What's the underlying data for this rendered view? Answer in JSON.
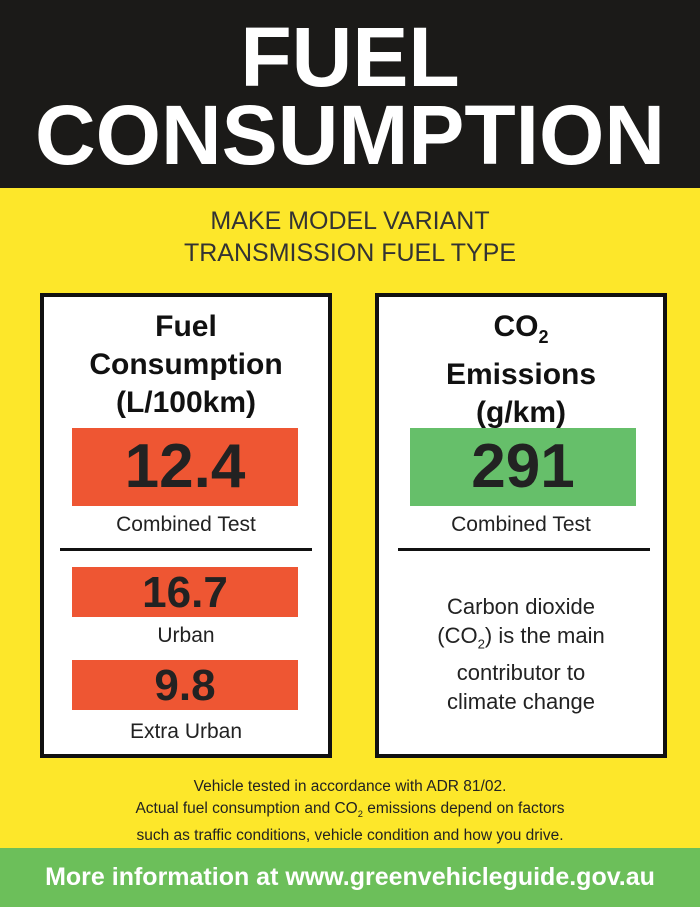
{
  "header": {
    "title": [
      "FUEL",
      "CONSUMPTION"
    ]
  },
  "subtitle": [
    "MAKE MODEL VARIANT",
    "TRANSMISSION FUEL TYPE"
  ],
  "fuel_panel": {
    "title": [
      "Fuel",
      "Consumption",
      "(L/100km)"
    ],
    "combined": {
      "value": "12.4",
      "label": "Combined Test"
    },
    "urban": {
      "value": "16.7",
      "label": "Urban"
    },
    "extra_urban": {
      "value": "9.8",
      "label": "Extra Urban"
    }
  },
  "co2_panel": {
    "title": [
      [
        "CO",
        "2"
      ],
      "Emissions",
      "(g/km)"
    ],
    "combined": {
      "value": "291",
      "label": "Combined Test"
    },
    "note": [
      "Carbon dioxide",
      [
        "(CO",
        "2",
        ") is the main"
      ],
      "contributor to",
      "climate change"
    ]
  },
  "disclaimer": [
    "Vehicle tested in accordance with ADR 81/02.",
    [
      "Actual fuel consumption and CO",
      "2",
      " emissions depend on factors"
    ],
    "such as traffic conditions, vehicle condition and how you drive."
  ],
  "footer": "More information at www.greenvehicleguide.gov.au"
}
